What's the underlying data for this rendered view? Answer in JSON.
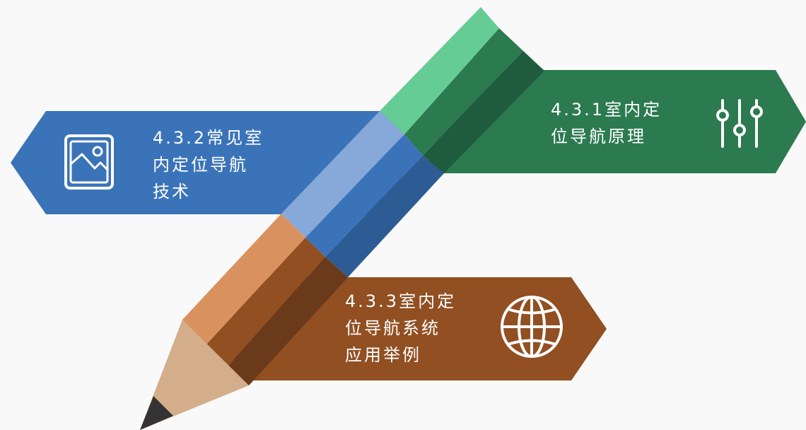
{
  "colors": {
    "background": "#f9f9f9",
    "blue": "#3b73b9",
    "green": "#2b7a50",
    "brown": "#914f22",
    "pencil_tip": "#d4ad8a",
    "pencil_lead": "#333333",
    "label_text": "#ffffff"
  },
  "banners": [
    {
      "id": "blue",
      "lines": [
        "4.3.2常见室",
        "内定位导航",
        "技术"
      ],
      "icon": "image-icon"
    },
    {
      "id": "green",
      "lines": [
        "4.3.1室内定",
        "位导航原理"
      ],
      "icon": "sliders-icon"
    },
    {
      "id": "brown",
      "lines": [
        "4.3.3室内定",
        "位导航系统",
        "应用举例"
      ],
      "icon": "globe-icon"
    }
  ]
}
